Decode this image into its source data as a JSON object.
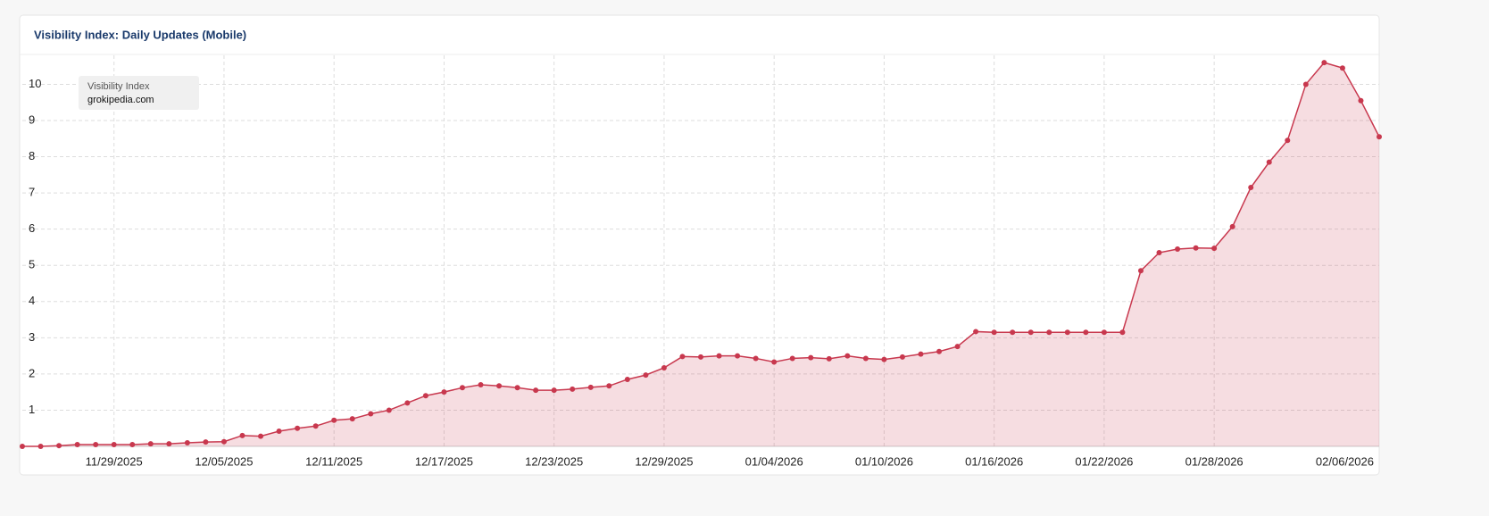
{
  "chart_data": {
    "type": "area",
    "title": "Visibility Index: Daily Updates (Mobile)",
    "x": [
      "11/24/2025",
      "11/25/2025",
      "11/26/2025",
      "11/27/2025",
      "11/28/2025",
      "11/29/2025",
      "11/30/2025",
      "12/01/2025",
      "12/02/2025",
      "12/03/2025",
      "12/04/2025",
      "12/05/2025",
      "12/06/2025",
      "12/07/2025",
      "12/08/2025",
      "12/09/2025",
      "12/10/2025",
      "12/11/2025",
      "12/12/2025",
      "12/13/2025",
      "12/14/2025",
      "12/15/2025",
      "12/16/2025",
      "12/17/2025",
      "12/18/2025",
      "12/19/2025",
      "12/20/2025",
      "12/21/2025",
      "12/22/2025",
      "12/23/2025",
      "12/24/2025",
      "12/25/2025",
      "12/26/2025",
      "12/27/2025",
      "12/28/2025",
      "12/29/2025",
      "12/30/2025",
      "12/31/2025",
      "01/01/2026",
      "01/02/2026",
      "01/03/2026",
      "01/04/2026",
      "01/05/2026",
      "01/06/2026",
      "01/07/2026",
      "01/08/2026",
      "01/09/2026",
      "01/10/2026",
      "01/11/2026",
      "01/12/2026",
      "01/13/2026",
      "01/14/2026",
      "01/15/2026",
      "01/16/2026",
      "01/17/2026",
      "01/18/2026",
      "01/19/2026",
      "01/20/2026",
      "01/21/2026",
      "01/22/2026",
      "01/23/2026",
      "01/24/2026",
      "01/25/2026",
      "01/26/2026",
      "01/27/2026",
      "01/28/2026",
      "01/29/2026",
      "01/30/2026",
      "01/31/2026",
      "02/01/2026",
      "02/02/2026",
      "02/03/2026",
      "02/04/2026",
      "02/05/2026",
      "02/06/2026"
    ],
    "series": [
      {
        "name": "Visibility Index",
        "subtitle": "grokipedia.com",
        "color": "#c8384e",
        "values": [
          0.0,
          0.0,
          0.02,
          0.05,
          0.05,
          0.05,
          0.05,
          0.07,
          0.07,
          0.1,
          0.12,
          0.13,
          0.3,
          0.28,
          0.42,
          0.5,
          0.56,
          0.72,
          0.76,
          0.9,
          1.0,
          1.2,
          1.4,
          1.5,
          1.62,
          1.7,
          1.67,
          1.62,
          1.55,
          1.55,
          1.58,
          1.63,
          1.67,
          1.85,
          1.97,
          2.17,
          2.48,
          2.47,
          2.5,
          2.5,
          2.43,
          2.33,
          2.43,
          2.45,
          2.42,
          2.5,
          2.43,
          2.4,
          2.47,
          2.55,
          2.62,
          2.76,
          3.17,
          3.15,
          3.15,
          3.15,
          3.15,
          3.15,
          3.15,
          3.15,
          3.15,
          4.85,
          5.35,
          5.45,
          5.48,
          5.47,
          6.07,
          7.15,
          7.85,
          8.45,
          10.0,
          10.6,
          10.45,
          9.55,
          8.55
        ]
      }
    ],
    "xticks": [
      "11/29/2025",
      "12/05/2025",
      "12/11/2025",
      "12/17/2025",
      "12/23/2025",
      "12/29/2025",
      "01/04/2026",
      "01/10/2026",
      "01/16/2026",
      "01/22/2026",
      "01/28/2026",
      "02/06/2026"
    ],
    "ylim": [
      0,
      10.8
    ],
    "yticks": [
      1,
      2,
      3,
      4,
      5,
      6,
      7,
      8,
      9,
      10
    ],
    "grid": true
  }
}
